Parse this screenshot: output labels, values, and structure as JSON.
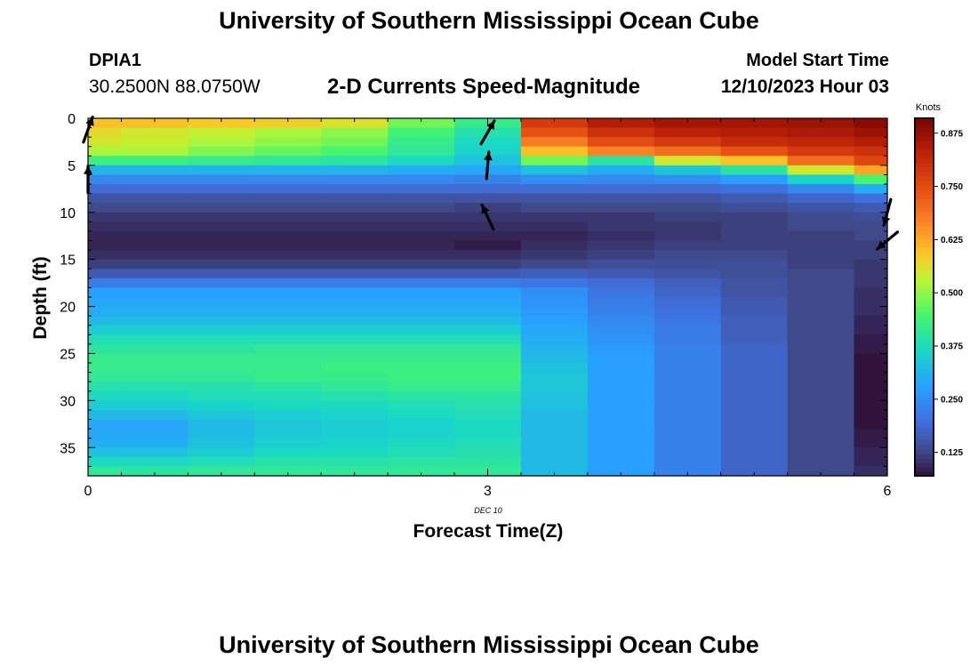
{
  "header": {
    "title": "University of Southern Mississippi Ocean Cube",
    "station_id": "DPIA1",
    "station_coords": "30.2500N  88.0750W",
    "subtitle": "2-D Currents Speed-Magnitude",
    "start_label": "Model Start Time",
    "start_time": "12/10/2023 Hour 03"
  },
  "footer": {
    "title": "University of Southern Mississippi Ocean Cube"
  },
  "chart_data": {
    "type": "heatmap",
    "xlabel": "Forecast Time(Z)",
    "ylabel": "Depth (ft)",
    "x_ticks": [
      "0",
      "3",
      "6"
    ],
    "x_tick_values": [
      0,
      3,
      6
    ],
    "x_date_label": "DEC 10",
    "y_ticks": [
      0,
      5,
      10,
      15,
      20,
      25,
      30,
      35
    ],
    "xlim": [
      0,
      6
    ],
    "ylim": [
      0,
      38
    ],
    "y_inverted": true,
    "colorbar": {
      "label": "Knots",
      "ticks": [
        "0.125",
        "0.250",
        "0.375",
        "0.500",
        "0.625",
        "0.750",
        "0.875"
      ],
      "tick_values": [
        0.125,
        0.25,
        0.375,
        0.5,
        0.625,
        0.75,
        0.875
      ],
      "range": [
        0.07,
        0.91
      ],
      "colormap": "turbo"
    },
    "time_columns": [
      0,
      0.5,
      1,
      1.5,
      2,
      2.5,
      3,
      3.5,
      4,
      4.5,
      5,
      5.5,
      6
    ],
    "depth_rows": [
      0.5,
      1.5,
      2.5,
      3.5,
      4.5,
      5.5,
      6.5,
      7.5,
      8.5,
      9.5,
      10.5,
      11.5,
      12.5,
      13.5,
      14.5,
      15.5,
      16.5,
      17.5,
      18.5,
      19.5,
      20.5,
      21.5,
      22.5,
      23.5,
      24.5,
      25.5,
      26.5,
      27.5,
      28.5,
      29.5,
      30.5,
      31.5,
      32.5,
      33.5,
      34.5,
      35.5,
      36.5,
      37.5
    ],
    "profiles": [
      [
        0.6,
        0.57,
        0.55,
        0.52,
        0.43,
        0.31,
        0.24,
        0.19,
        0.15,
        0.13,
        0.11,
        0.1,
        0.09,
        0.09,
        0.1,
        0.12,
        0.16,
        0.22,
        0.28,
        0.29,
        0.3,
        0.32,
        0.35,
        0.38,
        0.4,
        0.42,
        0.42,
        0.41,
        0.39,
        0.37,
        0.35,
        0.32,
        0.29,
        0.29,
        0.3,
        0.33,
        0.37,
        0.41
      ],
      [
        0.6,
        0.55,
        0.54,
        0.52,
        0.43,
        0.31,
        0.24,
        0.19,
        0.15,
        0.13,
        0.11,
        0.1,
        0.09,
        0.09,
        0.1,
        0.12,
        0.16,
        0.22,
        0.28,
        0.29,
        0.3,
        0.32,
        0.35,
        0.38,
        0.4,
        0.42,
        0.42,
        0.41,
        0.39,
        0.37,
        0.35,
        0.32,
        0.29,
        0.29,
        0.3,
        0.33,
        0.37,
        0.4
      ],
      [
        0.59,
        0.54,
        0.52,
        0.49,
        0.42,
        0.31,
        0.24,
        0.19,
        0.15,
        0.13,
        0.11,
        0.1,
        0.09,
        0.09,
        0.1,
        0.12,
        0.16,
        0.22,
        0.28,
        0.29,
        0.3,
        0.32,
        0.35,
        0.38,
        0.4,
        0.42,
        0.42,
        0.41,
        0.39,
        0.38,
        0.36,
        0.34,
        0.32,
        0.32,
        0.33,
        0.35,
        0.38,
        0.41
      ],
      [
        0.58,
        0.52,
        0.5,
        0.47,
        0.41,
        0.31,
        0.24,
        0.19,
        0.15,
        0.13,
        0.11,
        0.1,
        0.09,
        0.09,
        0.1,
        0.12,
        0.16,
        0.22,
        0.28,
        0.29,
        0.3,
        0.32,
        0.35,
        0.38,
        0.41,
        0.42,
        0.42,
        0.42,
        0.4,
        0.38,
        0.37,
        0.35,
        0.34,
        0.34,
        0.35,
        0.37,
        0.39,
        0.41
      ],
      [
        0.56,
        0.5,
        0.48,
        0.45,
        0.4,
        0.31,
        0.24,
        0.19,
        0.15,
        0.13,
        0.11,
        0.1,
        0.09,
        0.09,
        0.1,
        0.12,
        0.16,
        0.22,
        0.28,
        0.29,
        0.3,
        0.32,
        0.35,
        0.38,
        0.41,
        0.42,
        0.43,
        0.42,
        0.41,
        0.39,
        0.37,
        0.36,
        0.35,
        0.35,
        0.36,
        0.37,
        0.39,
        0.41
      ],
      [
        0.48,
        0.44,
        0.42,
        0.41,
        0.37,
        0.3,
        0.24,
        0.19,
        0.15,
        0.13,
        0.11,
        0.1,
        0.09,
        0.09,
        0.1,
        0.12,
        0.16,
        0.22,
        0.28,
        0.29,
        0.3,
        0.32,
        0.35,
        0.38,
        0.41,
        0.42,
        0.43,
        0.43,
        0.42,
        0.4,
        0.38,
        0.37,
        0.36,
        0.36,
        0.37,
        0.38,
        0.4,
        0.41
      ],
      [
        0.42,
        0.39,
        0.37,
        0.36,
        0.33,
        0.29,
        0.23,
        0.19,
        0.15,
        0.12,
        0.11,
        0.1,
        0.09,
        0.08,
        0.1,
        0.12,
        0.16,
        0.22,
        0.28,
        0.29,
        0.3,
        0.32,
        0.35,
        0.38,
        0.41,
        0.42,
        0.43,
        0.43,
        0.42,
        0.4,
        0.39,
        0.38,
        0.37,
        0.37,
        0.38,
        0.39,
        0.4,
        0.41
      ],
      [
        0.78,
        0.74,
        0.68,
        0.6,
        0.48,
        0.33,
        0.25,
        0.19,
        0.15,
        0.13,
        0.11,
        0.1,
        0.09,
        0.1,
        0.11,
        0.13,
        0.17,
        0.21,
        0.25,
        0.26,
        0.27,
        0.28,
        0.29,
        0.3,
        0.31,
        0.32,
        0.33,
        0.34,
        0.34,
        0.33,
        0.33,
        0.32,
        0.32,
        0.32,
        0.32,
        0.32,
        0.32,
        0.32
      ],
      [
        0.84,
        0.8,
        0.75,
        0.67,
        0.4,
        0.3,
        0.24,
        0.19,
        0.15,
        0.13,
        0.11,
        0.11,
        0.1,
        0.11,
        0.12,
        0.14,
        0.16,
        0.19,
        0.21,
        0.22,
        0.23,
        0.24,
        0.25,
        0.26,
        0.27,
        0.28,
        0.28,
        0.28,
        0.28,
        0.28,
        0.28,
        0.28,
        0.28,
        0.28,
        0.28,
        0.28,
        0.28,
        0.28
      ],
      [
        0.86,
        0.83,
        0.78,
        0.7,
        0.55,
        0.34,
        0.25,
        0.19,
        0.15,
        0.13,
        0.12,
        0.11,
        0.11,
        0.12,
        0.13,
        0.14,
        0.15,
        0.17,
        0.18,
        0.19,
        0.2,
        0.21,
        0.22,
        0.22,
        0.23,
        0.23,
        0.23,
        0.23,
        0.23,
        0.23,
        0.23,
        0.23,
        0.23,
        0.23,
        0.23,
        0.23,
        0.23,
        0.23
      ],
      [
        0.86,
        0.84,
        0.81,
        0.74,
        0.6,
        0.4,
        0.28,
        0.2,
        0.16,
        0.14,
        0.12,
        0.12,
        0.12,
        0.12,
        0.13,
        0.14,
        0.14,
        0.15,
        0.15,
        0.16,
        0.16,
        0.17,
        0.17,
        0.17,
        0.18,
        0.18,
        0.18,
        0.18,
        0.18,
        0.18,
        0.18,
        0.18,
        0.18,
        0.18,
        0.18,
        0.18,
        0.18,
        0.18
      ],
      [
        0.87,
        0.85,
        0.82,
        0.78,
        0.7,
        0.55,
        0.36,
        0.24,
        0.18,
        0.15,
        0.13,
        0.13,
        0.12,
        0.12,
        0.12,
        0.12,
        0.13,
        0.13,
        0.13,
        0.13,
        0.13,
        0.13,
        0.13,
        0.13,
        0.13,
        0.13,
        0.13,
        0.13,
        0.13,
        0.13,
        0.13,
        0.13,
        0.13,
        0.13,
        0.13,
        0.13,
        0.13,
        0.13
      ],
      [
        0.89,
        0.87,
        0.84,
        0.8,
        0.76,
        0.63,
        0.45,
        0.3,
        0.2,
        0.16,
        0.14,
        0.13,
        0.13,
        0.12,
        0.12,
        0.11,
        0.11,
        0.11,
        0.1,
        0.1,
        0.1,
        0.09,
        0.09,
        0.08,
        0.08,
        0.07,
        0.07,
        0.06,
        0.06,
        0.06,
        0.06,
        0.07,
        0.07,
        0.08,
        0.08,
        0.09,
        0.09,
        0.1
      ]
    ],
    "vectors": [
      {
        "t": 0,
        "depth": 1.2,
        "direction": 20
      },
      {
        "t": 0,
        "depth": 6.5,
        "direction": 0
      },
      {
        "t": 3,
        "depth": 1.5,
        "direction": 30
      },
      {
        "t": 3,
        "depth": 5.0,
        "direction": 5
      },
      {
        "t": 3,
        "depth": 10.5,
        "direction": 335
      },
      {
        "t": 6,
        "depth": 10.0,
        "direction": 195
      },
      {
        "t": 6,
        "depth": 13.0,
        "direction": 230
      }
    ]
  }
}
